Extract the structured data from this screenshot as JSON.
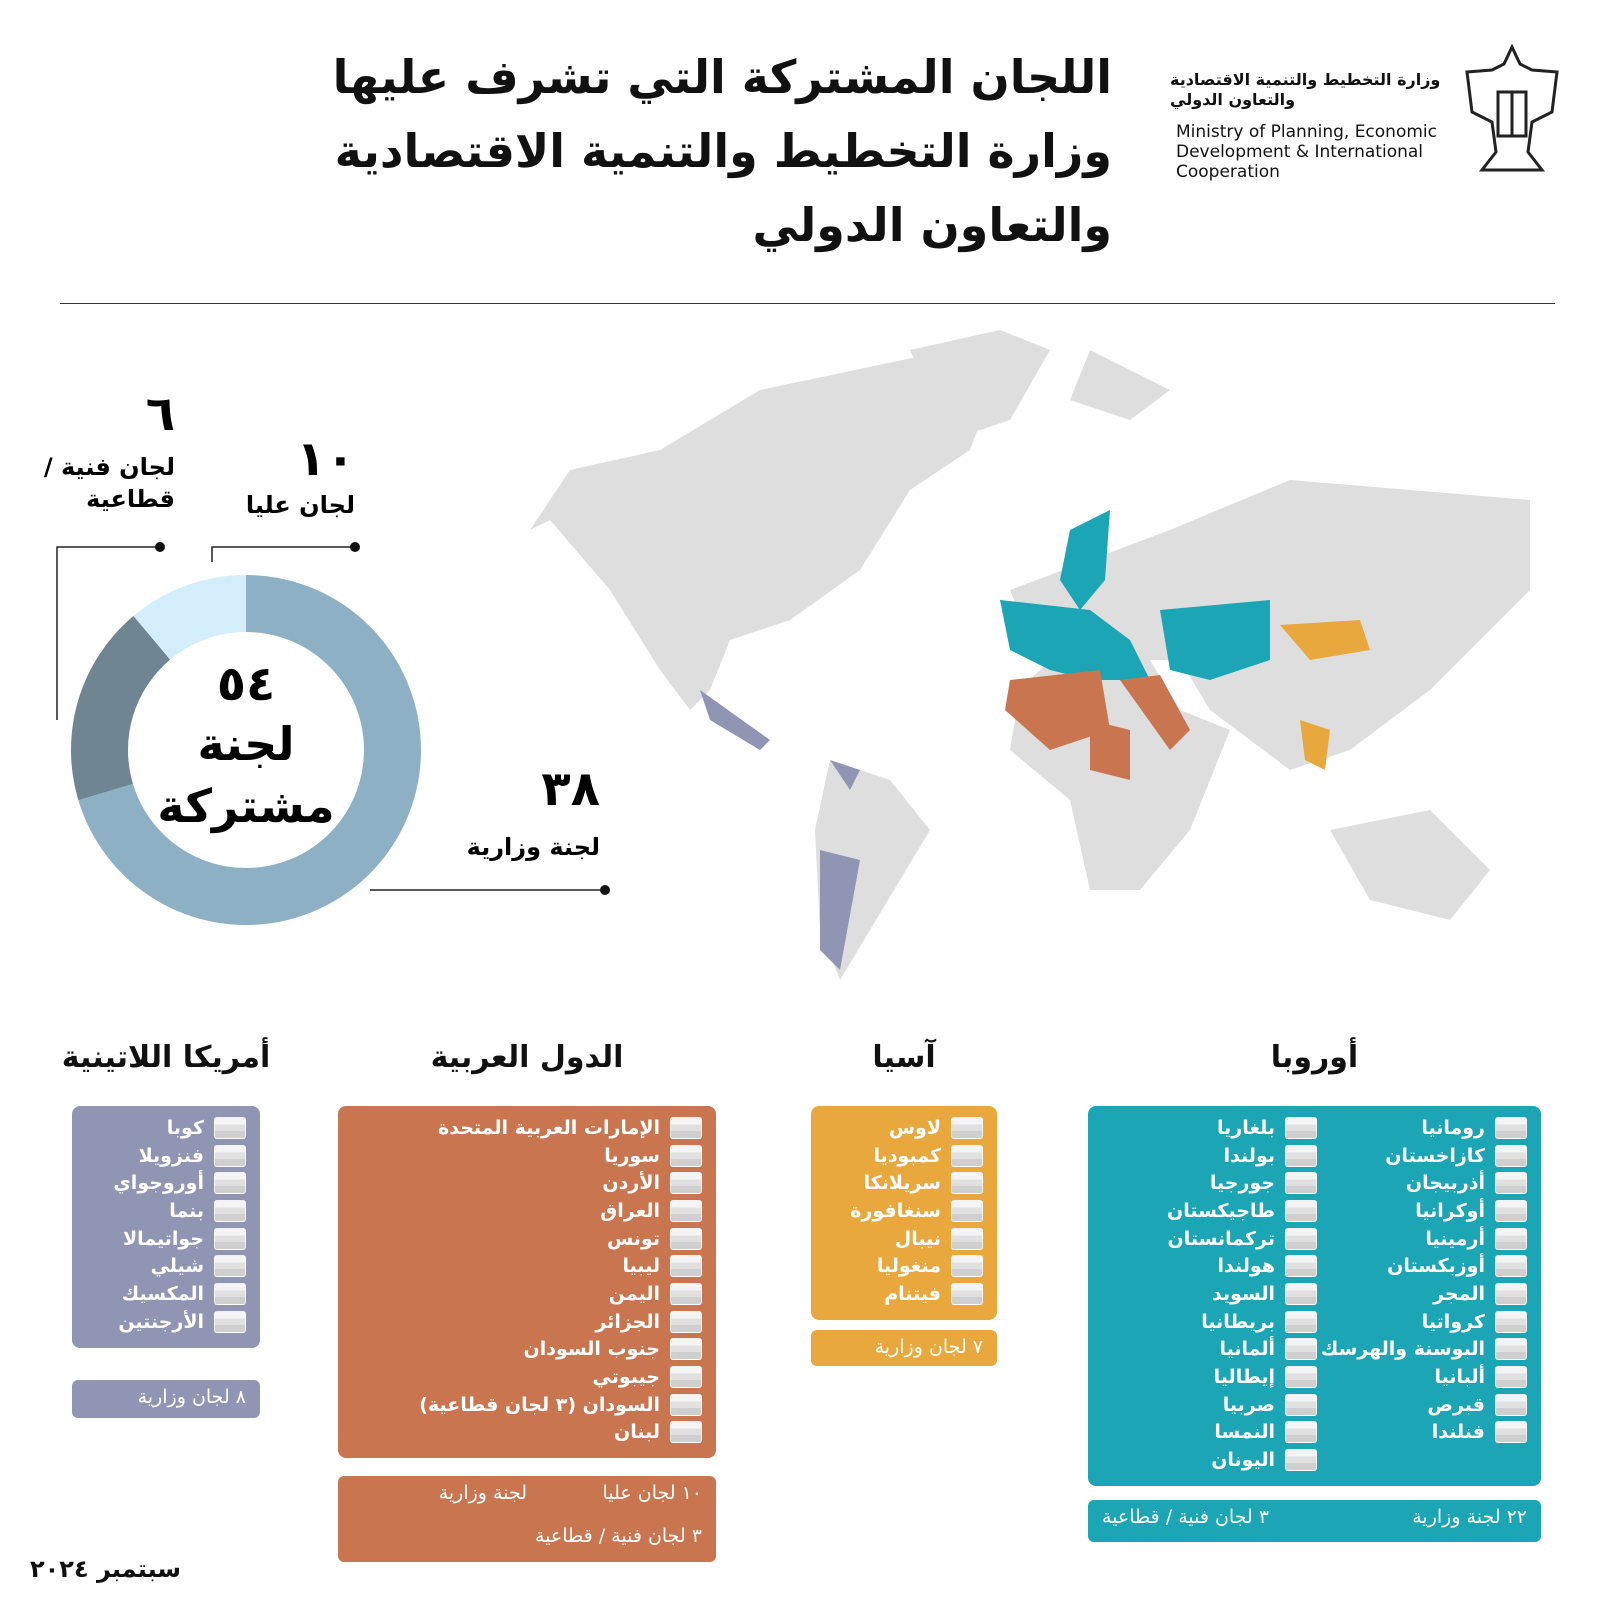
{
  "header": {
    "title_lines": [
      "اللجان المشتركة التي تشرف عليها",
      "وزارة التخطيط والتنمية الاقتصادية",
      "والتعاون الدولي"
    ],
    "logo_ar": [
      "وزارة التخطيط والتنمية الاقتصادية",
      "والتعاون الدولي"
    ],
    "logo_en": [
      "Ministry of Planning, Economic",
      "Development & International",
      "Cooperation"
    ]
  },
  "chart_data": {
    "type": "pie",
    "donut": true,
    "center_title": "٥٤",
    "center_label": [
      "لجنة",
      "مشتركة"
    ],
    "categories": [
      "لجنة وزارية",
      "لجان عليا",
      "لجان فنية / قطاعية"
    ],
    "values": [
      38,
      10,
      6
    ],
    "value_labels": [
      "٣٨",
      "١٠",
      "٦"
    ],
    "colors": [
      "#8eb0c5",
      "#6f8591",
      "#d4edfb"
    ]
  },
  "regions": [
    {
      "name": "أوروبا",
      "color": "#1ba5b5",
      "columns": [
        [
          "رومانيا",
          "كازاخستان",
          "أذربيجان",
          "أوكرانيا",
          "أرمينيا",
          "أوزبكستان",
          "المجر",
          "كرواتيا",
          "البوسنة والهرسك",
          "ألبانيا",
          "قبرص",
          "فنلندا"
        ],
        [
          "بلغاريا",
          "بولندا",
          "جورجيا",
          "طاجيكستان",
          "تركمانستان",
          "هولندا",
          "السويد",
          "بريطانيا",
          "ألمانيا",
          "إيطاليا",
          "صربيا",
          "النمسا",
          "اليونان"
        ]
      ],
      "summary": [
        "٢٢ لجنة وزارية",
        "٣ لجان فنية / قطاعية"
      ]
    },
    {
      "name": "آسيا",
      "color": "#e8a83e",
      "columns": [
        [
          "لاوس",
          "كمبوديا",
          "سريلانكا",
          "سنغافورة",
          "نيبال",
          "منغوليا",
          "فيتنام"
        ]
      ],
      "summary": [
        "٧ لجان وزارية"
      ]
    },
    {
      "name": "الدول العربية",
      "color": "#c97550",
      "columns": [
        [
          "الإمارات العربية المتحدة",
          "سوريا",
          "الأردن",
          "العراق",
          "تونس",
          "ليبيا",
          "اليمن",
          "الجزائر",
          "جنوب السودان",
          "جيبوتي",
          "السودان (٣ لجان قطاعية)",
          "لبنان"
        ]
      ],
      "summary": [
        "١٠ لجان عليا",
        "لجنة وزارية",
        "٣ لجان فنية / قطاعية"
      ]
    },
    {
      "name": "أمريكا اللاتينية",
      "color": "#8f95b2",
      "columns": [
        [
          "كوبا",
          "فنزويلا",
          "أوروجواي",
          "بنما",
          "جواتيمالا",
          "شيلي",
          "المكسيك",
          "الأرجنتين"
        ]
      ],
      "summary": [
        "٨ لجان وزارية"
      ]
    }
  ],
  "date": "سبتمبر ٢٠٢٤"
}
